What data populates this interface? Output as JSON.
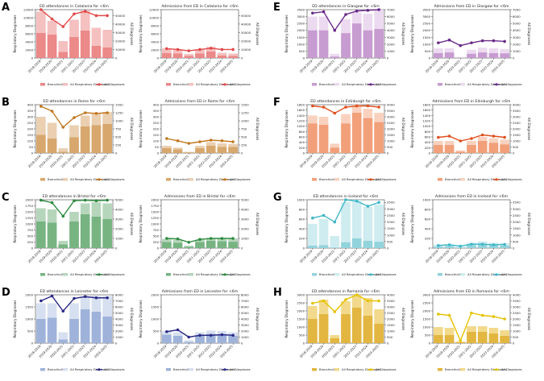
{
  "legend_labels": {
    "bronch": "Bronchiolitis",
    "resp": "All Respiratory Diagnoses",
    "all": "All Diagnoses"
  },
  "chart_data": [
    {
      "label": "A",
      "color": "#e24a4a",
      "left": {
        "title": "ED attendances in Catalonia for <6m",
        "ylabel": "Respiratory Diagnoses",
        "y2label": "All Diagnoses",
        "ylim": [
          0,
          12000
        ],
        "yticks": [
          0,
          2000,
          4000,
          6000,
          8000,
          10000,
          12000
        ],
        "y2lim": [
          0,
          57000
        ],
        "y2ticks": [
          0,
          10000,
          20000,
          30000,
          40000,
          50000
        ],
        "bronch": [
          6200,
          5800,
          1500,
          5200,
          6800,
          3000,
          2600
        ],
        "resp": [
          11500,
          9200,
          4200,
          9500,
          11800,
          7500,
          7000
        ],
        "all": [
          57000,
          46000,
          37000,
          52000,
          55000,
          50000,
          50000
        ]
      },
      "right": {
        "title": "Admissions from ED in Catalonia for <6m",
        "bronch": [
          1200,
          1100,
          500,
          1100,
          1600,
          600,
          500
        ],
        "resp": [
          2400,
          2200,
          1000,
          2200,
          2800,
          1300,
          1100
        ],
        "all": [
          11000,
          10000,
          8500,
          10000,
          11500,
          10000,
          10000
        ]
      }
    },
    {
      "label": "B",
      "color": "#c2771f",
      "left": {
        "title": "ED attendances in Rome for <6m",
        "ylabel": "Respiratory Diagnoses",
        "y2label": "All Diagnoses",
        "ylim": [
          0,
          400
        ],
        "yticks": [
          0,
          50,
          100,
          150,
          200,
          250,
          300,
          350,
          400
        ],
        "y2lim": [
          0,
          1500
        ],
        "y2ticks": [
          0,
          250,
          500,
          750,
          1000,
          1250,
          1500
        ],
        "bronch": [
          150,
          120,
          10,
          130,
          220,
          230,
          240
        ],
        "resp": [
          300,
          250,
          40,
          230,
          310,
          330,
          340
        ],
        "all": [
          1450,
          1300,
          800,
          1100,
          1250,
          1230,
          1250
        ]
      },
      "right": {
        "title": "Admissions from ED in Rome for <6m",
        "bronch": [
          40,
          30,
          5,
          40,
          60,
          50,
          50
        ],
        "resp": [
          60,
          45,
          10,
          60,
          90,
          80,
          75
        ],
        "all": [
          450,
          380,
          300,
          350,
          400,
          380,
          350
        ]
      }
    },
    {
      "label": "C",
      "color": "#2e8b3f",
      "left": {
        "title": "ED attendances in Bristol for <6m",
        "ylabel": "Respiratory Diagnoses",
        "y2label": "All Diagnoses",
        "ylim": [
          0,
          2000
        ],
        "yticks": [
          0,
          250,
          500,
          750,
          1000,
          1250,
          1500,
          1750,
          2000
        ],
        "y2lim": [
          0,
          5000
        ],
        "y2ticks": [
          0,
          1000,
          2000,
          3000,
          4000,
          5000
        ],
        "bronch": [
          1100,
          1050,
          150,
          1100,
          1400,
          1300,
          1200
        ],
        "resp": [
          1650,
          1600,
          300,
          1500,
          1850,
          1900,
          1850
        ],
        "all": [
          4950,
          4700,
          3300,
          4900,
          4950,
          4900,
          4950
        ]
      },
      "right": {
        "title": "Admissions from ED in Bristol for <6m",
        "bronch": [
          250,
          220,
          50,
          250,
          300,
          280,
          260
        ],
        "resp": [
          380,
          350,
          100,
          350,
          420,
          420,
          400
        ],
        "all": [
          1000,
          950,
          600,
          900,
          1000,
          1000,
          1000
        ]
      }
    },
    {
      "label": "D",
      "color": "#2a2a86",
      "bar": "#9fb3da",
      "bar2": "#d7e0f0",
      "left": {
        "title": "ED attendances in Leicester for <6m",
        "ylabel": "Respiratory Diagnoses",
        "y2label": "All Diagnoses",
        "ylim": [
          0,
          2000
        ],
        "yticks": [
          0,
          500,
          1000,
          1500,
          2000
        ],
        "y2lim": [
          0,
          8000
        ],
        "y2ticks": [
          0,
          1000,
          2000,
          3000,
          4000,
          5000,
          6000,
          7000,
          8000
        ],
        "bronch": [
          1000,
          1050,
          150,
          1000,
          1400,
          1300,
          1100
        ],
        "resp": [
          1650,
          1650,
          450,
          1650,
          1900,
          1950,
          1950
        ],
        "all": [
          7000,
          7800,
          5300,
          7400,
          7700,
          7500,
          7500
        ]
      },
      "right": {
        "title": "Admissions from ED in Leicester for <6m",
        "bronch": [
          350,
          300,
          50,
          300,
          380,
          350,
          300
        ],
        "resp": [
          500,
          450,
          120,
          450,
          520,
          500,
          450
        ],
        "all": [
          1900,
          2200,
          1000,
          1300,
          1300,
          1400,
          1300
        ]
      }
    },
    {
      "label": "E",
      "color": "#6a2a8a",
      "bar": "#c79cd1",
      "bar2": "#ecdaf0",
      "left": {
        "title": "ED attendances in Glasgow for <6m",
        "ylabel": "Respiratory Diagnoses",
        "y2label": "All Diagnoses",
        "ylim": [
          0,
          3500
        ],
        "yticks": [
          0,
          500,
          1000,
          1500,
          2000,
          2500,
          3000,
          3500
        ],
        "y2lim": [
          0,
          7000
        ],
        "y2ticks": [
          0,
          1000,
          2000,
          3000,
          4000,
          5000,
          6000,
          7000
        ],
        "bronch": [
          2000,
          2000,
          100,
          1800,
          2500,
          2000,
          2100
        ],
        "resp": [
          3000,
          3000,
          300,
          2800,
          3300,
          3200,
          3500
        ],
        "all": [
          6500,
          6700,
          4000,
          6300,
          6800,
          6900,
          7000
        ]
      },
      "right": {
        "title": "Admissions from ED in Glasgow for <6m",
        "bronch": [
          350,
          400,
          20,
          300,
          400,
          350,
          330
        ],
        "resp": [
          700,
          700,
          60,
          600,
          750,
          700,
          650
        ],
        "all": [
          2200,
          2600,
          1800,
          2200,
          2500,
          2500,
          2400
        ]
      }
    },
    {
      "label": "F",
      "color": "#e0501f",
      "bar": "#f2a07a",
      "bar2": "#f9d2bf",
      "left": {
        "title": "ED attendances in Edinburgh for <6m",
        "ylabel": "Respiratory Diagnoses",
        "y2label": "All Diagnoses",
        "ylim": [
          0,
          1800
        ],
        "yticks": [
          0,
          200,
          400,
          600,
          800,
          1000,
          1200,
          1400,
          1600,
          1800
        ],
        "y2lim": [
          0,
          4000
        ],
        "y2ticks": [
          0,
          500,
          1000,
          1500,
          2000,
          2500,
          3000,
          3500,
          4000
        ],
        "bronch": [
          1100,
          1050,
          200,
          1100,
          1500,
          1300,
          1150
        ],
        "resp": [
          1400,
          1350,
          350,
          1450,
          1800,
          1650,
          1500
        ],
        "all": [
          3900,
          3800,
          3300,
          3800,
          3900,
          3900,
          3800
        ]
      },
      "right": {
        "title": "Admissions from ED in Edinburgh for <6m",
        "bronch": [
          300,
          300,
          50,
          300,
          450,
          380,
          320
        ],
        "resp": [
          450,
          450,
          100,
          450,
          600,
          550,
          500
        ],
        "all": [
          1300,
          1400,
          1000,
          1200,
          1500,
          1400,
          1300
        ]
      }
    },
    {
      "label": "G",
      "color": "#3fb7c7",
      "bar": "#93d3dc",
      "bar2": "#cfecf0",
      "left": {
        "title": "ED attendances in Iceland for <6m",
        "ylabel": "Respiratory Diagnoses",
        "y2label": "All Diagnoses",
        "ylim": [
          0,
          1000
        ],
        "yticks": [
          0,
          200,
          400,
          600,
          800,
          1000
        ],
        "y2lim": [
          0,
          3700
        ],
        "y2ticks": [
          0,
          500,
          1000,
          1500,
          2000,
          2500,
          3000,
          3500
        ],
        "bronch": [
          50,
          60,
          10,
          120,
          200,
          150,
          130
        ],
        "resp": [
          500,
          600,
          250,
          950,
          1000,
          850,
          900
        ],
        "all": [
          2300,
          2500,
          2000,
          3700,
          3600,
          3200,
          3500
        ]
      },
      "right": {
        "title": "Admissions from ED in Iceland for <6m",
        "bronch": [
          30,
          40,
          10,
          60,
          80,
          60,
          50
        ],
        "resp": [
          70,
          80,
          30,
          110,
          140,
          110,
          100
        ],
        "all": [
          200,
          250,
          150,
          300,
          300,
          250,
          280
        ]
      }
    },
    {
      "label": "H",
      "color": "#e7c200",
      "bar": "#e2b640",
      "bar2": "#f2d98b",
      "left": {
        "title": "ED attendances in Romania for <6m",
        "ylabel": "Respiratory Diagnoses",
        "y2label": "All Diagnoses",
        "ylim": [
          0,
          3000
        ],
        "yticks": [
          0,
          500,
          1000,
          1500,
          2000,
          2500,
          3000
        ],
        "y2lim": [
          0,
          4000
        ],
        "y2ticks": [
          0,
          500,
          1000,
          1500,
          2000,
          2500,
          3000,
          3500,
          4000
        ],
        "bronch": [
          1500,
          1800,
          300,
          1800,
          2200,
          1700,
          1200
        ],
        "resp": [
          2300,
          2700,
          500,
          2600,
          3000,
          2800,
          2100
        ],
        "all": [
          3300,
          3500,
          2600,
          3600,
          4000,
          3500,
          3500
        ]
      },
      "right": {
        "title": "Admissions from ED in Romania for <6m",
        "bronch": [
          500,
          500,
          50,
          700,
          700,
          600,
          450
        ],
        "resp": [
          1000,
          950,
          100,
          1050,
          1050,
          950,
          800
        ],
        "all": [
          2400,
          2300,
          200,
          2500,
          2300,
          2200,
          2000
        ]
      }
    }
  ],
  "categories": [
    "2018-2019",
    "2019-2020",
    "2020-2021",
    "2021-2022",
    "2022-2023",
    "2023-2024",
    "2024-2025"
  ]
}
